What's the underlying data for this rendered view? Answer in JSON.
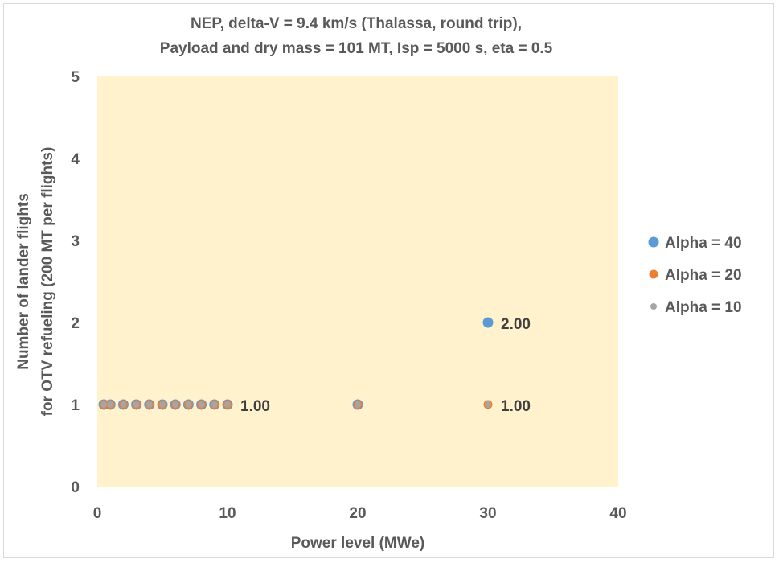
{
  "chart_data": {
    "type": "scatter",
    "title": [
      "NEP, delta-V = 9.4 km/s (Thalassa, round trip),",
      "Payload and dry mass = 101 MT, Isp = 5000 s, eta = 0.5"
    ],
    "xlabel": "Power level (MWe)",
    "ylabel": [
      "Number of lander flights",
      "for OTV refueling (200 MT per flights)"
    ],
    "xlim": [
      0,
      40
    ],
    "ylim": [
      0,
      5
    ],
    "xticks": [
      0,
      10,
      20,
      30,
      40
    ],
    "yticks": [
      0,
      1,
      2,
      3,
      4,
      5
    ],
    "plot_background": "#fff2cc",
    "grid": false,
    "legend_position": "right",
    "series": [
      {
        "name": "Alpha = 40",
        "color": "#5b9bd5",
        "marker_size": "large",
        "x": [
          0.5,
          1,
          2,
          3,
          4,
          5,
          6,
          7,
          8,
          9,
          10,
          20,
          30
        ],
        "y": [
          1,
          1,
          1,
          1,
          1,
          1,
          1,
          1,
          1,
          1,
          1,
          1,
          2
        ]
      },
      {
        "name": "Alpha = 20",
        "color": "#ed7d31",
        "marker_size": "medium",
        "x": [
          0.5,
          1,
          2,
          3,
          4,
          5,
          6,
          7,
          8,
          9,
          10,
          20,
          30
        ],
        "y": [
          1,
          1,
          1,
          1,
          1,
          1,
          1,
          1,
          1,
          1,
          1,
          1,
          1
        ]
      },
      {
        "name": "Alpha = 10",
        "color": "#a5a5a5",
        "marker_size": "small",
        "x": [
          0.5,
          1,
          2,
          3,
          4,
          5,
          6,
          7,
          8,
          9,
          10,
          20,
          30
        ],
        "y": [
          1,
          1,
          1,
          1,
          1,
          1,
          1,
          1,
          1,
          1,
          1,
          1,
          1
        ]
      }
    ],
    "annotations": [
      {
        "text": "1.00",
        "x": 10,
        "y": 1
      },
      {
        "text": "2.00",
        "x": 30,
        "y": 2
      },
      {
        "text": "1.00",
        "x": 30,
        "y": 1
      }
    ]
  }
}
